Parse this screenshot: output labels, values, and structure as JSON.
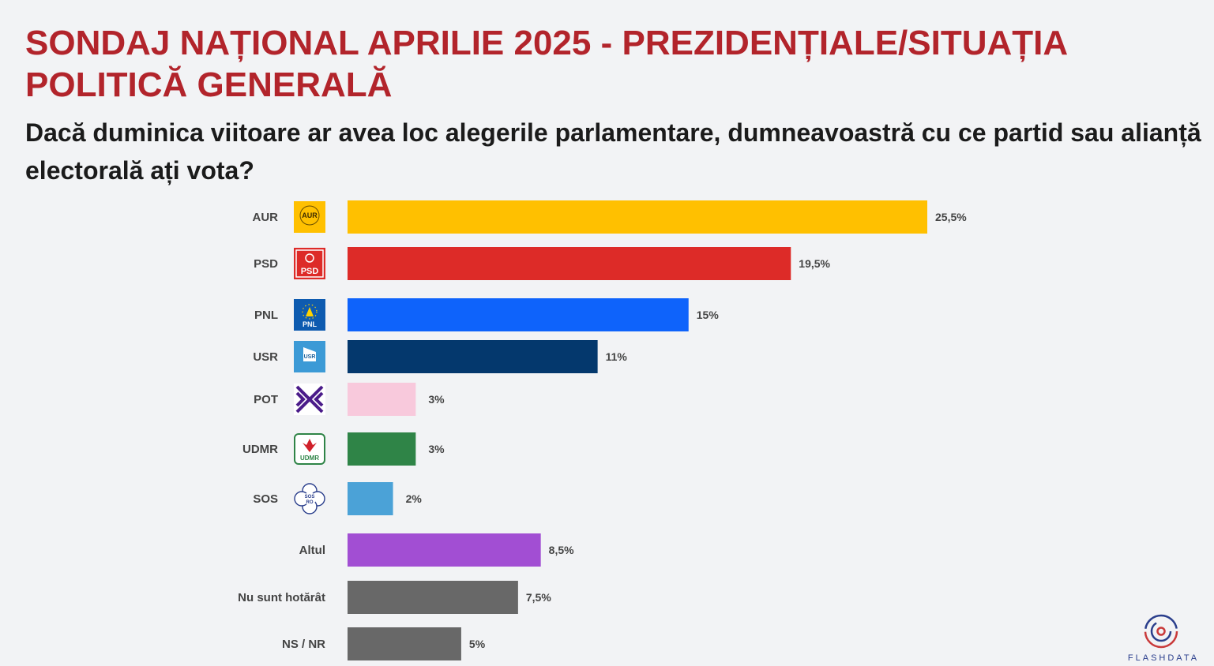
{
  "title": "SONDAJ NAȚIONAL APRILIE 2025 - PREZIDENȚIALE/SITUAȚIA POLITICĂ GENERALĂ",
  "subtitle": "Dacă duminica viitoare ar avea loc alegerile parlamentare, dumneavoastră cu ce partid sau alianță electorală ați vota?",
  "brand": {
    "name": "FLASHDATA",
    "icon": "flashdata-logo-icon"
  },
  "colors": {
    "title": "#b2242b",
    "AUR": "#ffc000",
    "PSD": "#dd2b28",
    "PNL": "#0e63fb",
    "USR": "#04386d",
    "POT": "#f8c9dc",
    "UDMR": "#2f8447",
    "SOS": "#4ba2d7",
    "Altul": "#a24ed3",
    "Nu sunt hotărât": "#686868",
    "NS / NR": "#686868"
  },
  "chart_data": {
    "type": "bar",
    "orientation": "horizontal",
    "title": "Dacă duminica viitoare ar avea loc alegerile parlamentare, dumneavoastră cu ce partid sau alianță electorală ați vota?",
    "xlabel": "",
    "ylabel": "",
    "xlim": [
      0,
      26
    ],
    "grid": false,
    "legend": "none",
    "categories": [
      "AUR",
      "PSD",
      "PNL",
      "USR",
      "POT",
      "UDMR",
      "SOS",
      "Altul",
      "Nu sunt hotărât",
      "NS / NR"
    ],
    "values": [
      25.5,
      19.5,
      15,
      11,
      3,
      3,
      2,
      8.5,
      7.5,
      5
    ],
    "value_labels": [
      "25,5%",
      "19,5%",
      "15%",
      "11%",
      "3%",
      "3%",
      "2%",
      "8,5%",
      "7,5%",
      "5%"
    ],
    "logos": [
      {
        "party": "AUR",
        "icon": "aur-logo-icon",
        "text": "AUR"
      },
      {
        "party": "PSD",
        "icon": "psd-logo-icon",
        "text": "PSD"
      },
      {
        "party": "PNL",
        "icon": "pnl-logo-icon",
        "text": "PNL"
      },
      {
        "party": "USR",
        "icon": "usr-logo-icon",
        "text": "USR"
      },
      {
        "party": "POT",
        "icon": "pot-logo-icon",
        "text": ""
      },
      {
        "party": "UDMR",
        "icon": "udmr-logo-icon",
        "text": "UDMR"
      },
      {
        "party": "SOS",
        "icon": "sos-logo-icon",
        "text": "SOS RO"
      }
    ]
  }
}
